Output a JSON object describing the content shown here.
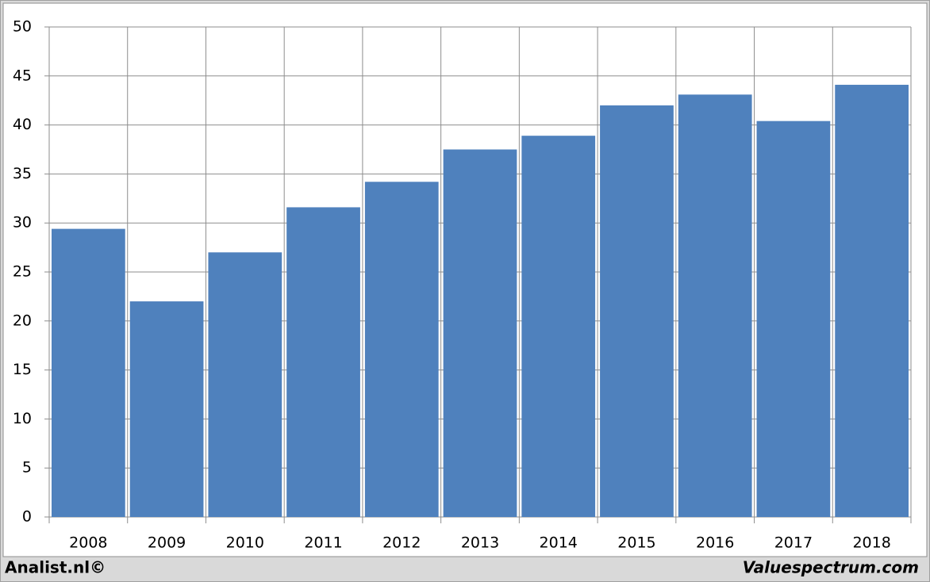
{
  "chart_data": {
    "type": "bar",
    "categories": [
      "2008",
      "2009",
      "2010",
      "2011",
      "2012",
      "2013",
      "2014",
      "2015",
      "2016",
      "2017",
      "2018"
    ],
    "values": [
      29.4,
      22,
      27,
      31.6,
      34.2,
      37.5,
      38.9,
      42,
      43.1,
      40.4,
      44.1
    ],
    "color": "#4f81bd",
    "ylim": [
      0,
      50
    ],
    "yticks": [
      0,
      5,
      10,
      15,
      20,
      25,
      30,
      35,
      40,
      45,
      50
    ],
    "grid": true,
    "credits": [
      "Analist.nl©",
      "Valuespectrum.com"
    ]
  }
}
